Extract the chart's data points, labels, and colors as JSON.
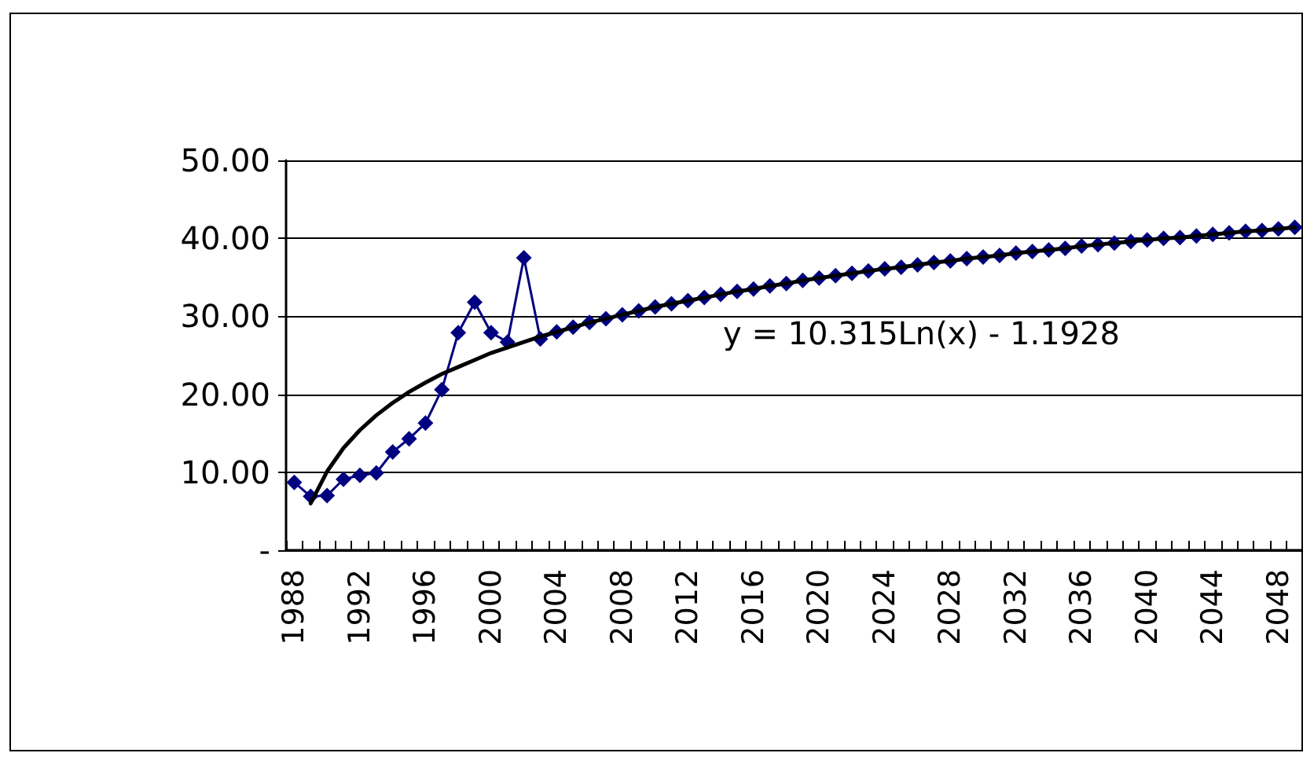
{
  "chart_data": {
    "type": "line",
    "categories": [
      "1988",
      null,
      null,
      null,
      "1992",
      null,
      null,
      null,
      "1996",
      null,
      null,
      null,
      "2000",
      null,
      null,
      null,
      "2004",
      null,
      null,
      null,
      "2008",
      null,
      null,
      null,
      "2012",
      null,
      null,
      null,
      "2016",
      null,
      null,
      null,
      "2020",
      null,
      null,
      null,
      "2024",
      null,
      null,
      null,
      "2028",
      null,
      null,
      null,
      "2032",
      null,
      null,
      null,
      "2036",
      null,
      null,
      null,
      "2040",
      null,
      null,
      null,
      "2044",
      null,
      null,
      null,
      "2048",
      null
    ],
    "series": [
      {
        "color": "#000080",
        "marker": "diamond",
        "values": [
          8.7,
          6.9,
          7.0,
          9.1,
          9.6,
          9.9,
          12.6,
          14.3,
          16.3,
          20.6,
          27.9,
          31.8,
          27.9,
          26.7,
          37.5,
          27.1,
          28.0,
          28.6,
          29.2,
          29.7,
          30.2,
          30.7,
          31.2,
          31.6,
          32.0,
          32.4,
          32.8,
          33.2,
          33.5,
          33.9,
          34.2,
          34.6,
          34.9,
          35.2,
          35.5,
          35.8,
          36.1,
          36.3,
          36.6,
          36.9,
          37.1,
          37.4,
          37.6,
          37.8,
          38.1,
          38.3,
          38.5,
          38.7,
          39.0,
          39.2,
          39.4,
          39.6,
          39.8,
          40.0,
          40.1,
          40.3,
          40.5,
          40.7,
          40.9,
          41.0,
          41.2,
          41.4
        ]
      },
      {
        "color": "#000000",
        "marker": "none",
        "values": [
          null,
          6.0,
          10.1,
          13.1,
          15.4,
          17.3,
          18.9,
          20.3,
          21.5,
          22.6,
          23.5,
          24.4,
          25.3,
          26.0,
          26.7,
          27.4,
          28.0,
          28.6,
          29.2,
          29.7,
          30.2,
          30.7,
          31.2,
          31.6,
          32.0,
          32.4,
          32.8,
          33.2,
          33.5,
          33.9,
          34.2,
          34.6,
          34.9,
          35.2,
          35.5,
          35.8,
          36.1,
          36.3,
          36.6,
          36.9,
          37.1,
          37.4,
          37.6,
          37.8,
          38.1,
          38.3,
          38.5,
          38.7,
          39.0,
          39.2,
          39.4,
          39.6,
          39.8,
          40.0,
          40.1,
          40.3,
          40.5,
          40.7,
          40.9,
          41.0,
          41.2,
          41.4
        ]
      }
    ],
    "ylim": [
      0,
      50
    ],
    "yticks": [
      {
        "value": 0,
        "label": "-"
      },
      {
        "value": 10,
        "label": "10.00"
      },
      {
        "value": 20,
        "label": "20.00"
      },
      {
        "value": 30,
        "label": "30.00"
      },
      {
        "value": 40,
        "label": "40.00"
      },
      {
        "value": 50,
        "label": "50.00"
      }
    ],
    "grid": "y",
    "line_style": "solid",
    "annotations": [
      "y = 10.315Ln(x) - 1.1928"
    ]
  }
}
